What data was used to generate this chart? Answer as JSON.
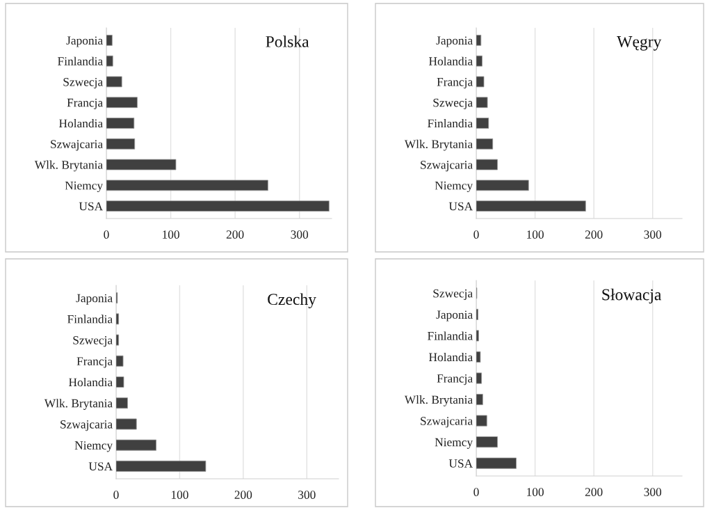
{
  "chart_data": [
    {
      "type": "bar",
      "orientation": "horizontal",
      "title": "Polska",
      "categories": [
        "Japonia",
        "Finlandia",
        "Szwecja",
        "Francja",
        "Holandia",
        "Szwajcaria",
        "Wlk. Brytania",
        "Niemcy",
        "USA"
      ],
      "values": [
        9,
        10,
        24,
        48,
        43,
        44,
        108,
        251,
        346
      ],
      "color": "#404040",
      "xlim": [
        0,
        350
      ],
      "xticks": [
        0,
        100,
        200,
        300
      ],
      "grid": "x"
    },
    {
      "type": "bar",
      "orientation": "horizontal",
      "title": "Węgry",
      "categories": [
        "Japonia",
        "Holandia",
        "Francja",
        "Szwecja",
        "Finlandia",
        "Wlk. Brytania",
        "Szwajcaria",
        "Niemcy",
        "USA"
      ],
      "values": [
        8,
        10,
        13,
        19,
        21,
        28,
        36,
        89,
        186
      ],
      "color": "#404040",
      "xlim": [
        0,
        350
      ],
      "xticks": [
        0,
        100,
        200,
        300
      ],
      "grid": "x"
    },
    {
      "type": "bar",
      "orientation": "horizontal",
      "title": "Czechy",
      "categories": [
        "Japonia",
        "Finlandia",
        "Szwecja",
        "Francja",
        "Holandia",
        "Wlk. Brytania",
        "Szwajcaria",
        "Niemcy",
        "USA"
      ],
      "values": [
        2,
        4,
        4,
        11,
        12,
        18,
        32,
        63,
        141
      ],
      "color": "#404040",
      "xlim": [
        0,
        350
      ],
      "xticks": [
        0,
        100,
        200,
        300
      ],
      "grid": "x"
    },
    {
      "type": "bar",
      "orientation": "horizontal",
      "title": "Słowacja",
      "categories": [
        "Szwecja",
        "Japonia",
        "Finlandia",
        "Holandia",
        "Francja",
        "Wlk. Brytania",
        "Szwajcaria",
        "Niemcy",
        "USA"
      ],
      "values": [
        1,
        3,
        4,
        7,
        9,
        11,
        18,
        36,
        68
      ],
      "color": "#404040",
      "xlim": [
        0,
        350
      ],
      "xticks": [
        0,
        100,
        200,
        300
      ],
      "grid": "x"
    }
  ]
}
